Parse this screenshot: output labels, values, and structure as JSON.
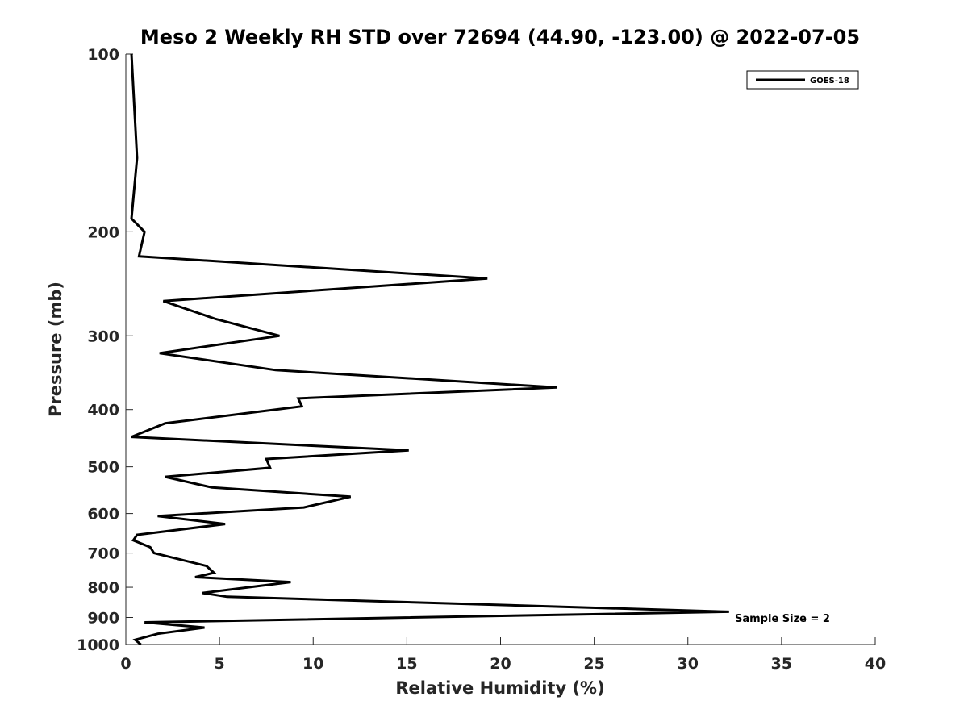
{
  "chart_data": {
    "type": "line",
    "title": "Meso 2 Weekly RH STD over 72694 (44.90, -123.00) @ 2022-07-05",
    "xlabel": "Relative Humidity (%)",
    "ylabel": "Pressure (mb)",
    "xlim": [
      0,
      40
    ],
    "ylim": [
      100,
      1000
    ],
    "yscale": "log",
    "yreversed": true,
    "xticks": [
      0,
      5,
      10,
      15,
      20,
      25,
      30,
      35,
      40
    ],
    "yticks": [
      100,
      200,
      300,
      400,
      500,
      600,
      700,
      800,
      900,
      1000
    ],
    "legend": {
      "location": "top-right",
      "entries": [
        "GOES-18"
      ]
    },
    "annotation": "Sample Size = 2",
    "series": [
      {
        "name": "GOES-18",
        "color": "#000000",
        "rh": [
          0.3,
          0.6,
          0.3,
          1.0,
          0.7,
          19.3,
          2.0,
          4.8,
          8.2,
          1.8,
          8.0,
          23.0,
          9.2,
          9.4,
          2.1,
          0.3,
          15.1,
          7.5,
          7.7,
          2.1,
          4.6,
          12.0,
          9.5,
          1.7,
          5.3,
          0.6,
          0.4,
          1.3,
          1.5,
          4.3,
          4.7,
          3.7,
          8.8,
          4.1,
          5.4,
          32.2,
          1.0,
          4.2,
          1.7,
          0.5,
          0.8
        ],
        "pressure": [
          100,
          150,
          190,
          200,
          220,
          240,
          262,
          281,
          300,
          321,
          343,
          367,
          383,
          395,
          422,
          445,
          469,
          485,
          502,
          520,
          542,
          562,
          586,
          606,
          625,
          652,
          666,
          684,
          700,
          736,
          756,
          769,
          784,
          818,
          830,
          880,
          917,
          936,
          959,
          982,
          1000
        ]
      }
    ]
  }
}
